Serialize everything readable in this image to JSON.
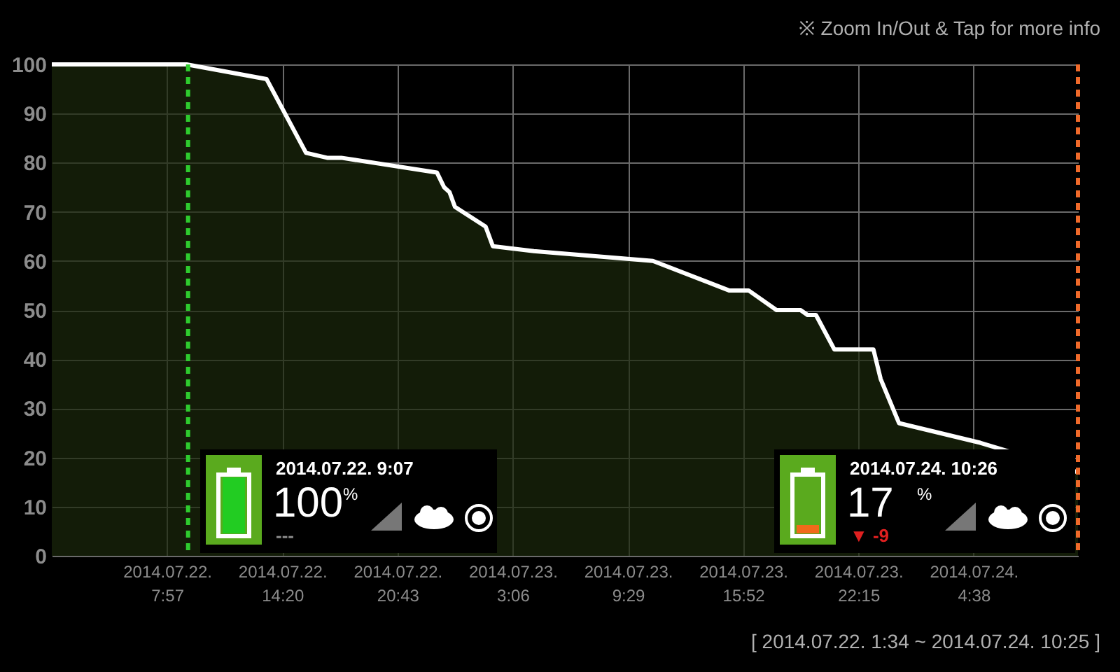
{
  "chart_data": {
    "type": "area",
    "color": "#1b280b",
    "x": [
      "2014-07-22T01:34",
      "2014-07-22T09:02",
      "2014-07-22T13:28",
      "2014-07-22T15:39",
      "2014-07-22T16:49",
      "2014-07-22T17:36",
      "2014-07-22T22:54",
      "2014-07-22T23:18",
      "2014-07-22T23:36",
      "2014-07-22T23:54",
      "2014-07-23T01:36",
      "2014-07-23T02:00",
      "2014-07-23T04:16",
      "2014-07-23T10:52",
      "2014-07-23T15:05",
      "2014-07-23T16:10",
      "2014-07-23T17:43",
      "2014-07-23T19:03",
      "2014-07-23T19:26",
      "2014-07-23T19:54",
      "2014-07-23T20:55",
      "2014-07-23T23:05",
      "2014-07-23T23:29",
      "2014-07-24T00:30",
      "2014-07-24T05:00",
      "2014-07-24T10:25"
    ],
    "values": [
      100,
      100,
      97,
      82,
      81,
      81,
      78,
      75,
      74,
      71,
      67,
      63,
      62,
      60,
      54,
      54,
      50,
      50,
      49,
      49,
      42,
      42,
      36,
      27,
      23,
      17
    ],
    "xlim": [
      "2014-07-22T01:34",
      "2014-07-24T10:25"
    ],
    "xticks": [
      {
        "value": "2014-07-22T07:57",
        "label": "2014.07.22. 7:57"
      },
      {
        "value": "2014-07-22T14:20",
        "label": "2014.07.22. 14:20"
      },
      {
        "value": "2014-07-22T20:43",
        "label": "2014.07.22. 20:43"
      },
      {
        "value": "2014-07-23T03:06",
        "label": "2014.07.23. 3:06"
      },
      {
        "value": "2014-07-23T09:29",
        "label": "2014.07.23. 9:29"
      },
      {
        "value": "2014-07-23T15:52",
        "label": "2014.07.23. 15:52"
      },
      {
        "value": "2014-07-23T22:15",
        "label": "2014.07.23. 22:15"
      },
      {
        "value": "2014-07-24T04:38",
        "label": "2014.07.24. 4:38"
      }
    ],
    "ylim": [
      0,
      100
    ],
    "yticks": [
      0,
      10,
      20,
      30,
      40,
      50,
      60,
      70,
      80,
      90,
      100
    ],
    "grid": true,
    "ref_lines": [
      {
        "axis": "x",
        "value": "2014-07-22T09:07",
        "color": "#2ecc2e",
        "line_style": "dashed"
      },
      {
        "axis": "x",
        "value": "2014-07-24T10:25",
        "color": "#f06a2a",
        "line_style": "dashed"
      }
    ],
    "annotations": [
      "※ Zoom In/Out & Tap for more info",
      "[ 2014.07.22. 1:34 ~ 2014.07.24. 10:25 ]",
      "2014.07.22. 9:07",
      "100",
      "%",
      "---",
      "2014.07.24. 10:26",
      "17",
      "%",
      "▼ -9"
    ]
  }
}
